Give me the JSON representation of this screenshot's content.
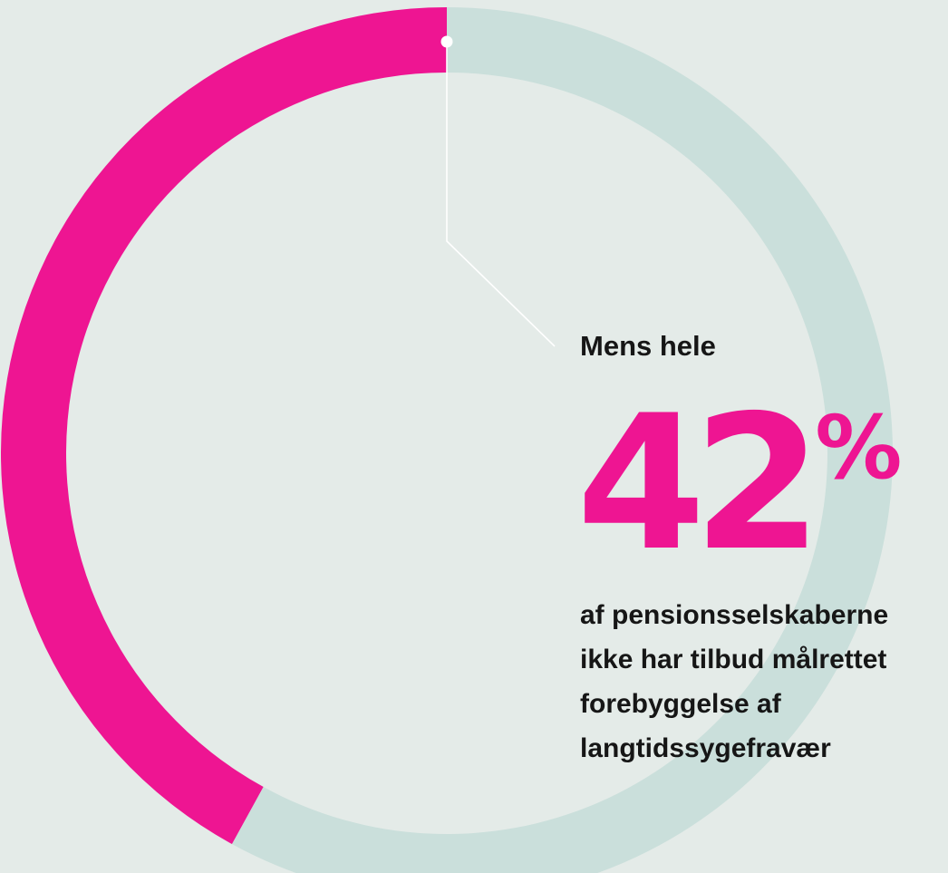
{
  "chart_data": {
    "type": "pie",
    "title": "",
    "series": [
      {
        "values": [
          42,
          58
        ]
      }
    ],
    "colors": [
      "#ee1592",
      "#cadfdb"
    ],
    "background": "#e4ebe8"
  },
  "callout": {
    "lead": "Mens hele",
    "value": "42",
    "unit": "%",
    "description_lines": [
      "af pensionsselskaberne",
      "ikke har tilbud målrettet",
      "forebyggelse af",
      "langtidssygefravær"
    ]
  }
}
